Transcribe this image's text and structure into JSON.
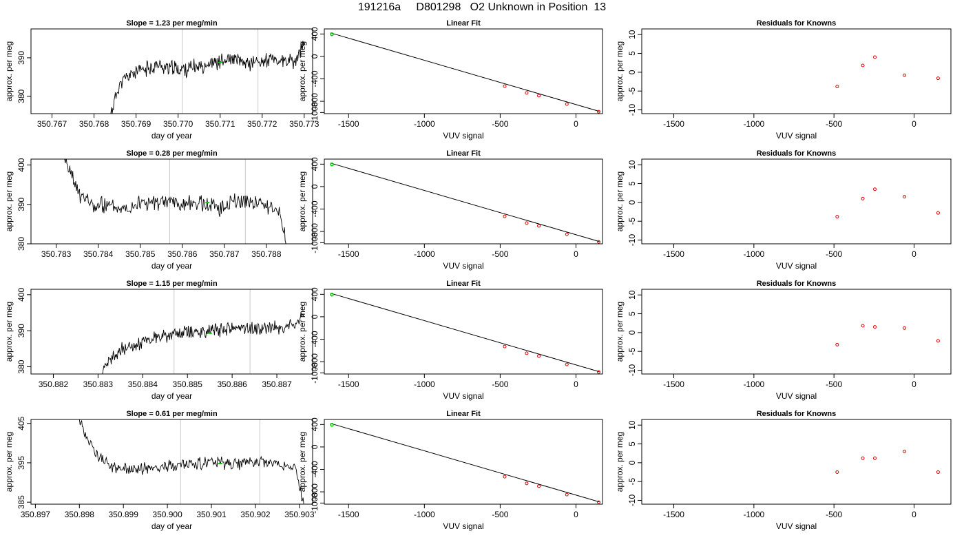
{
  "page": {
    "title": "191216a     D801298   O2 Unknown in Position  13"
  },
  "chart_data": [
    {
      "type": "line",
      "role": "trace",
      "title": "Slope =  1.23  per meg/min",
      "xlabel": "day of year",
      "ylabel": "approx. per meg",
      "xlim": [
        350.7665,
        350.7732
      ],
      "ylim": [
        375.5,
        397.5
      ],
      "xticks": [
        "350.767",
        "350.768",
        "350.769",
        "350.770",
        "350.771",
        "350.772",
        "350.773"
      ],
      "yticks": [
        380,
        390
      ],
      "vlines": [
        350.7701,
        350.7719
      ],
      "trace_start": [
        350.7684,
        375.5
      ],
      "trace_end": 350.773,
      "trace_samples": [
        [
          350.7684,
          375.5
        ],
        [
          350.7686,
          383
        ],
        [
          350.7689,
          386
        ],
        [
          350.7692,
          387
        ],
        [
          350.7695,
          388
        ],
        [
          350.7698,
          387.5
        ],
        [
          350.7701,
          387
        ],
        [
          350.7704,
          387.5
        ],
        [
          350.7707,
          388.5
        ],
        [
          350.771,
          389
        ],
        [
          350.7713,
          389.5
        ],
        [
          350.7716,
          388.5
        ],
        [
          350.7719,
          389
        ],
        [
          350.7722,
          389.5
        ],
        [
          350.7725,
          389
        ],
        [
          350.7728,
          389
        ],
        [
          350.773,
          394
        ]
      ],
      "noise": 1.6,
      "seed": 11,
      "marker": {
        "x": 350.771,
        "y": 388.8,
        "color": "#00cc00"
      }
    },
    {
      "type": "scatter",
      "role": "fit",
      "title": "Linear Fit",
      "xlabel": "VUV signal",
      "ylabel": "approx. per meg",
      "xlim": [
        -1660,
        175
      ],
      "ylim": [
        -1020,
        490
      ],
      "xticks": [
        -1500,
        -1000,
        -500,
        0
      ],
      "yticks": [
        -1000,
        -800,
        -400,
        0,
        400
      ],
      "line": {
        "x": [
          -1620,
          155
        ],
        "y": [
          420,
          -980
        ]
      },
      "points": {
        "x": [
          -470,
          -325,
          -245,
          -60,
          150
        ],
        "y": [
          -530,
          -650,
          -700,
          -850,
          -985
        ]
      },
      "unknown": {
        "x": -1610,
        "y": 395
      },
      "point_color": "#dd0000",
      "unknown_color": "#00cc00"
    },
    {
      "type": "scatter",
      "role": "residuals",
      "title": "Residuals for Knowns",
      "xlabel": "VUV signal",
      "ylabel": "approx. per meg",
      "xlim": [
        -1700,
        230
      ],
      "ylim": [
        -11,
        11.5
      ],
      "xticks": [
        -1500,
        -1000,
        -500,
        0
      ],
      "yticks": [
        -10,
        -5,
        0,
        5,
        10
      ],
      "points": {
        "x": [
          -480,
          -320,
          -245,
          -60,
          150
        ],
        "y": [
          -3.8,
          1.8,
          4.0,
          -0.8,
          -1.6
        ]
      },
      "point_color": "#dd0000"
    },
    {
      "type": "line",
      "role": "trace",
      "title": "Slope =  0.28  per meg/min",
      "xlabel": "day of year",
      "ylabel": "approx. per meg",
      "xlim": [
        350.7824,
        350.7891
      ],
      "ylim": [
        380,
        401.5
      ],
      "xticks": [
        "350.783",
        "350.784",
        "350.785",
        "350.786",
        "350.787",
        "350.788"
      ],
      "yticks": [
        380,
        390,
        400
      ],
      "vlines": [
        350.7857,
        350.7875
      ],
      "trace_start": [
        350.7832,
        401.5
      ],
      "trace_end": 350.7885,
      "trace_samples": [
        [
          350.7832,
          401.5
        ],
        [
          350.7834,
          396
        ],
        [
          350.7836,
          392
        ],
        [
          350.7839,
          389.5
        ],
        [
          350.7842,
          390
        ],
        [
          350.7845,
          389
        ],
        [
          350.7848,
          390
        ],
        [
          350.7851,
          390.5
        ],
        [
          350.7854,
          390
        ],
        [
          350.7857,
          391
        ],
        [
          350.786,
          390
        ],
        [
          350.7863,
          390.5
        ],
        [
          350.7866,
          390
        ],
        [
          350.7869,
          389
        ],
        [
          350.7872,
          391
        ],
        [
          350.7875,
          391
        ],
        [
          350.7878,
          390.5
        ],
        [
          350.7881,
          389.5
        ],
        [
          350.7883,
          388
        ],
        [
          350.7885,
          380
        ]
      ],
      "noise": 1.7,
      "seed": 23,
      "marker": {
        "x": 350.7866,
        "y": 390.5,
        "color": "#00cc00"
      }
    },
    {
      "type": "scatter",
      "role": "fit",
      "title": "Linear Fit",
      "xlabel": "VUV signal",
      "ylabel": "approx. per meg",
      "xlim": [
        -1660,
        175
      ],
      "ylim": [
        -1020,
        490
      ],
      "xticks": [
        -1500,
        -1000,
        -500,
        0
      ],
      "yticks": [
        -1000,
        -800,
        -400,
        0,
        400
      ],
      "line": {
        "x": [
          -1620,
          155
        ],
        "y": [
          420,
          -980
        ]
      },
      "points": {
        "x": [
          -470,
          -325,
          -245,
          -60,
          150
        ],
        "y": [
          -530,
          -650,
          -700,
          -850,
          -985
        ]
      },
      "unknown": {
        "x": -1610,
        "y": 395
      },
      "point_color": "#dd0000",
      "unknown_color": "#00cc00"
    },
    {
      "type": "scatter",
      "role": "residuals",
      "title": "Residuals for Knowns",
      "xlabel": "VUV signal",
      "ylabel": "approx. per meg",
      "xlim": [
        -1700,
        230
      ],
      "ylim": [
        -11,
        11.5
      ],
      "xticks": [
        -1500,
        -1000,
        -500,
        0
      ],
      "yticks": [
        -10,
        -5,
        0,
        5,
        10
      ],
      "points": {
        "x": [
          -480,
          -320,
          -245,
          -60,
          150
        ],
        "y": [
          -3.8,
          1.0,
          3.5,
          1.5,
          -2.8
        ]
      },
      "point_color": "#dd0000"
    },
    {
      "type": "line",
      "role": "trace",
      "title": "Slope =  1.15  per meg/min",
      "xlabel": "day of year",
      "ylabel": "approx. per meg",
      "xlim": [
        350.8815,
        350.8878
      ],
      "ylim": [
        378,
        401.5
      ],
      "xticks": [
        "350.882",
        "350.883",
        "350.884",
        "350.885",
        "350.886",
        "350.887"
      ],
      "yticks": [
        380,
        390,
        400
      ],
      "vlines": [
        350.8847,
        350.8864
      ],
      "trace_start": [
        350.8831,
        378
      ],
      "trace_end": 350.8876,
      "trace_samples": [
        [
          350.8831,
          378
        ],
        [
          350.8833,
          382
        ],
        [
          350.8835,
          384.5
        ],
        [
          350.8838,
          386
        ],
        [
          350.8841,
          387.5
        ],
        [
          350.8844,
          388.5
        ],
        [
          350.8847,
          389
        ],
        [
          350.885,
          389.5
        ],
        [
          350.8853,
          390
        ],
        [
          350.8856,
          390
        ],
        [
          350.8859,
          390.5
        ],
        [
          350.8862,
          391
        ],
        [
          350.8865,
          390.5
        ],
        [
          350.8868,
          391
        ],
        [
          350.8871,
          391
        ],
        [
          350.8874,
          391.5
        ],
        [
          350.8876,
          394
        ]
      ],
      "noise": 1.5,
      "seed": 37,
      "marker": {
        "x": 350.8855,
        "y": 389.3,
        "color": "#00cc00"
      }
    },
    {
      "type": "scatter",
      "role": "fit",
      "title": "Linear Fit",
      "xlabel": "VUV signal",
      "ylabel": "approx. per meg",
      "xlim": [
        -1660,
        175
      ],
      "ylim": [
        -1020,
        490
      ],
      "xticks": [
        -1500,
        -1000,
        -500,
        0
      ],
      "yticks": [
        -1000,
        -800,
        -400,
        0,
        400
      ],
      "line": {
        "x": [
          -1620,
          155
        ],
        "y": [
          420,
          -980
        ]
      },
      "points": {
        "x": [
          -470,
          -325,
          -245,
          -60,
          150
        ],
        "y": [
          -530,
          -650,
          -700,
          -850,
          -985
        ]
      },
      "unknown": {
        "x": -1610,
        "y": 395
      },
      "point_color": "#dd0000",
      "unknown_color": "#00cc00"
    },
    {
      "type": "scatter",
      "role": "residuals",
      "title": "Residuals for Knowns",
      "xlabel": "VUV signal",
      "ylabel": "approx. per meg",
      "xlim": [
        -1700,
        230
      ],
      "ylim": [
        -11,
        11.5
      ],
      "xticks": [
        -1500,
        -1000,
        -500,
        0
      ],
      "yticks": [
        -10,
        -5,
        0,
        5,
        10
      ],
      "points": {
        "x": [
          -480,
          -320,
          -245,
          -60,
          150
        ],
        "y": [
          -3.2,
          1.8,
          1.5,
          1.2,
          -2.2
        ]
      },
      "point_color": "#dd0000"
    },
    {
      "type": "line",
      "role": "trace",
      "title": "Slope =  0.61  per meg/min",
      "xlabel": "day of year",
      "ylabel": "approx. per meg",
      "xlim": [
        350.8969,
        350.9033
      ],
      "ylim": [
        384.5,
        406
      ],
      "xticks": [
        "350.897",
        "350.898",
        "350.899",
        "350.900",
        "350.901",
        "350.902",
        "350.903"
      ],
      "yticks": [
        385,
        395,
        405
      ],
      "vlines": [
        350.9003,
        350.9021
      ],
      "trace_start": [
        350.898,
        406
      ],
      "trace_end": 350.9031,
      "trace_samples": [
        [
          350.898,
          406
        ],
        [
          350.8982,
          401
        ],
        [
          350.8984,
          397
        ],
        [
          350.8987,
          394
        ],
        [
          350.899,
          393.5
        ],
        [
          350.8993,
          393.5
        ],
        [
          350.8996,
          393.5
        ],
        [
          350.8999,
          394
        ],
        [
          350.9002,
          394.5
        ],
        [
          350.9005,
          394.5
        ],
        [
          350.9008,
          395
        ],
        [
          350.9011,
          395
        ],
        [
          350.9014,
          394.5
        ],
        [
          350.9017,
          395
        ],
        [
          350.902,
          395.5
        ],
        [
          350.9023,
          395
        ],
        [
          350.9026,
          394.5
        ],
        [
          350.9029,
          393.5
        ],
        [
          350.9031,
          384.5
        ]
      ],
      "noise": 1.2,
      "seed": 53,
      "marker": {
        "x": 350.9012,
        "y": 394.8,
        "color": "#00cc00"
      }
    },
    {
      "type": "scatter",
      "role": "fit",
      "title": "Linear Fit",
      "xlabel": "VUV signal",
      "ylabel": "approx. per meg",
      "xlim": [
        -1660,
        175
      ],
      "ylim": [
        -1020,
        490
      ],
      "xticks": [
        -1500,
        -1000,
        -500,
        0
      ],
      "yticks": [
        -1000,
        -800,
        -400,
        0,
        400
      ],
      "line": {
        "x": [
          -1620,
          155
        ],
        "y": [
          420,
          -980
        ]
      },
      "points": {
        "x": [
          -470,
          -325,
          -245,
          -60,
          150
        ],
        "y": [
          -530,
          -650,
          -700,
          -850,
          -985
        ]
      },
      "unknown": {
        "x": -1610,
        "y": 395
      },
      "point_color": "#dd0000",
      "unknown_color": "#00cc00"
    },
    {
      "type": "scatter",
      "role": "residuals",
      "title": "Residuals for Knowns",
      "xlabel": "VUV signal",
      "ylabel": "approx. per meg",
      "xlim": [
        -1700,
        230
      ],
      "ylim": [
        -11,
        11.5
      ],
      "xticks": [
        -1500,
        -1000,
        -500,
        0
      ],
      "yticks": [
        -10,
        -5,
        0,
        5,
        10
      ],
      "points": {
        "x": [
          -480,
          -320,
          -245,
          -60,
          150
        ],
        "y": [
          -2.5,
          1.2,
          1.2,
          3.0,
          -2.5
        ]
      },
      "point_color": "#dd0000"
    }
  ]
}
